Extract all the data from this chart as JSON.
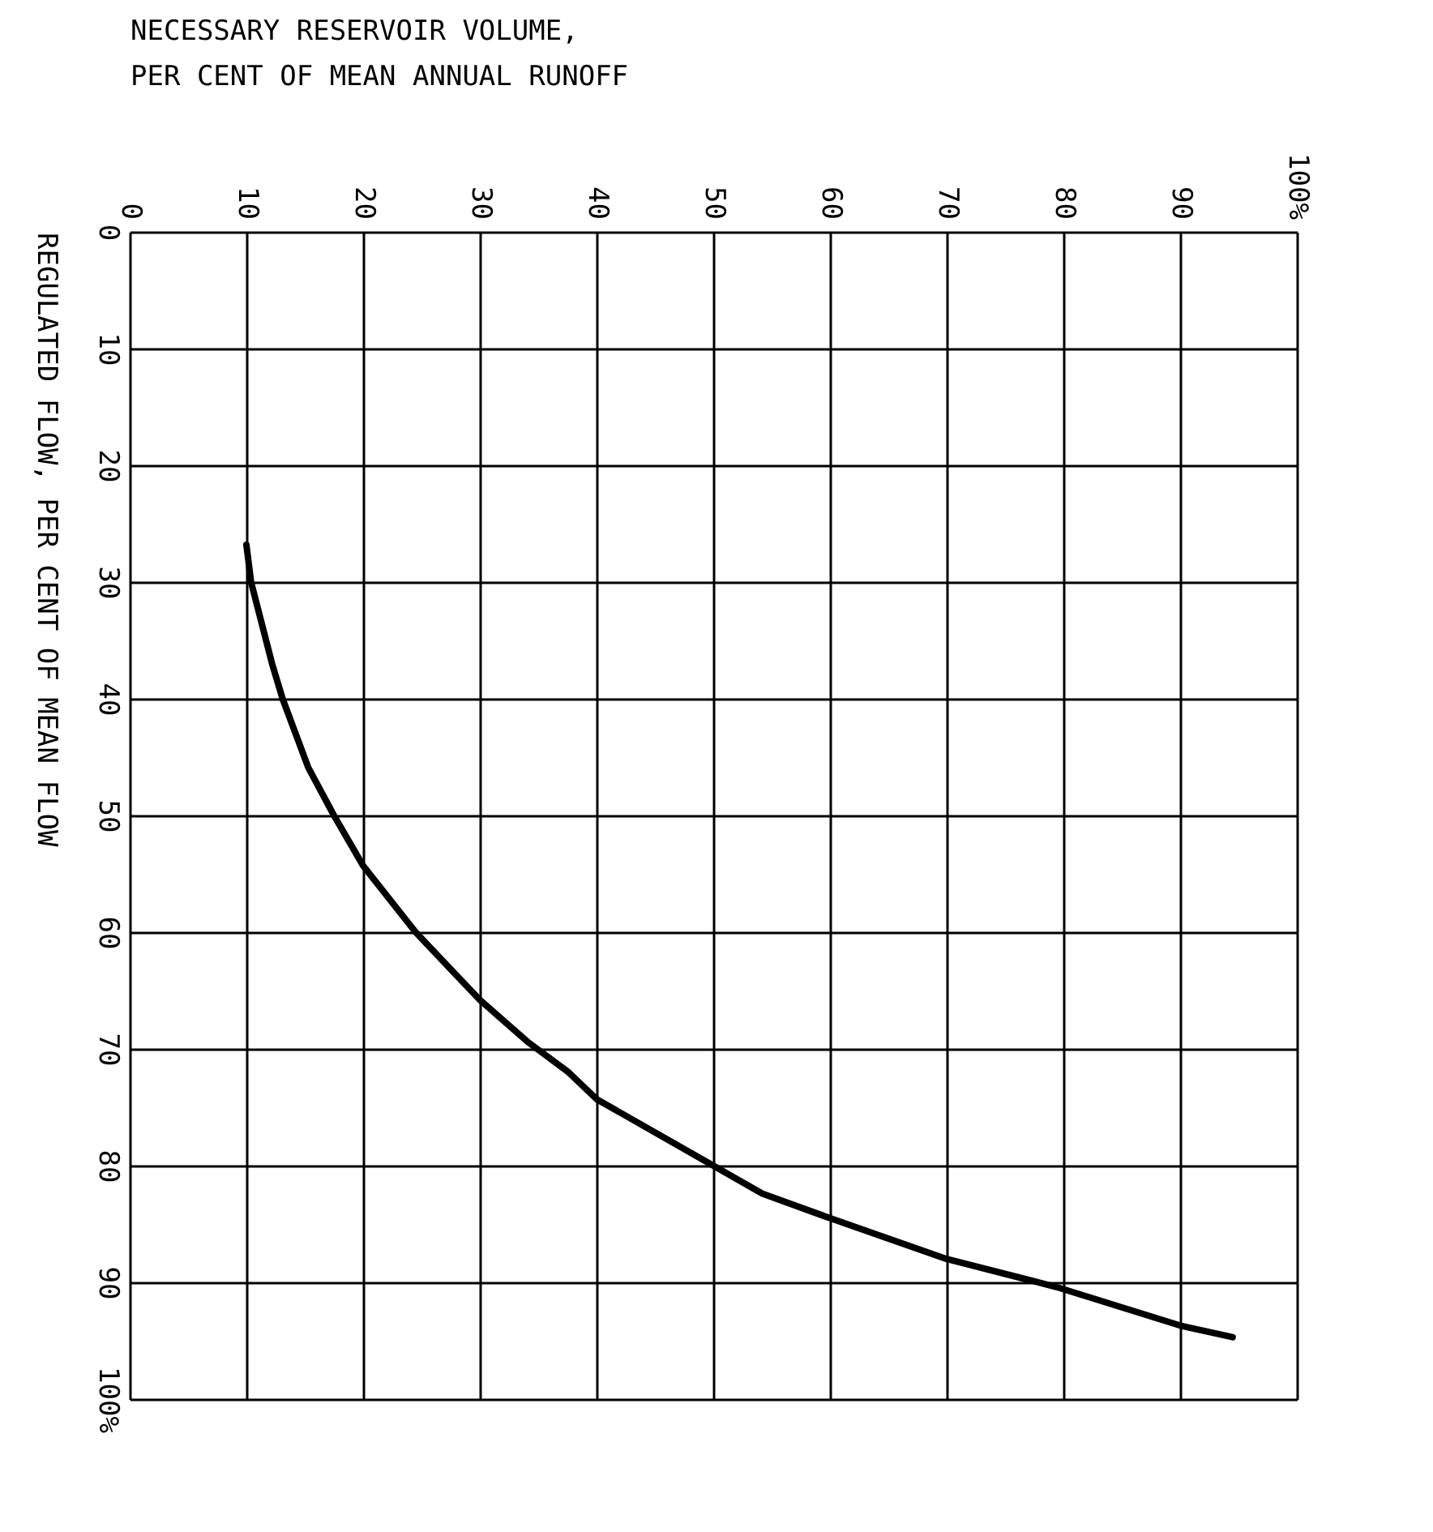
{
  "chart_data": {
    "type": "line",
    "xlabel": "NECESSARY RESERVOIR VOLUME,\nPER CENT OF MEAN ANNUAL RUNOFF",
    "ylabel": "REGULATED FLOW, PER CENT OF MEAN FLOW",
    "x": [
      10.0,
      10.4,
      12.2,
      13.1,
      15.3,
      17.5,
      20.0,
      24.5,
      27.9,
      30.0,
      34.1,
      37.6,
      40.0,
      50.0,
      54.2,
      60.0,
      70.0,
      79.4,
      90.0,
      94.5
    ],
    "series": [
      {
        "color": "#000000",
        "values": [
          26.8,
          30,
          37,
          40,
          45.9,
          50,
          54.3,
          60,
          63.6,
          65.8,
          69.4,
          72,
          74.3,
          80,
          82.4,
          84.5,
          88,
          90.4,
          93.7,
          94.7
        ]
      }
    ],
    "xlim": [
      0,
      100
    ],
    "ylim": [
      100,
      0
    ],
    "xticks": [
      0,
      10,
      20,
      30,
      40,
      50,
      60,
      70,
      80,
      90,
      {
        "value": 100,
        "label": "100%"
      }
    ],
    "yticks": [
      0,
      10,
      20,
      30,
      40,
      50,
      60,
      70,
      80,
      90,
      {
        "value": 100,
        "label": "100%"
      }
    ],
    "grid": true,
    "marker": "none",
    "line_style": "solid"
  }
}
